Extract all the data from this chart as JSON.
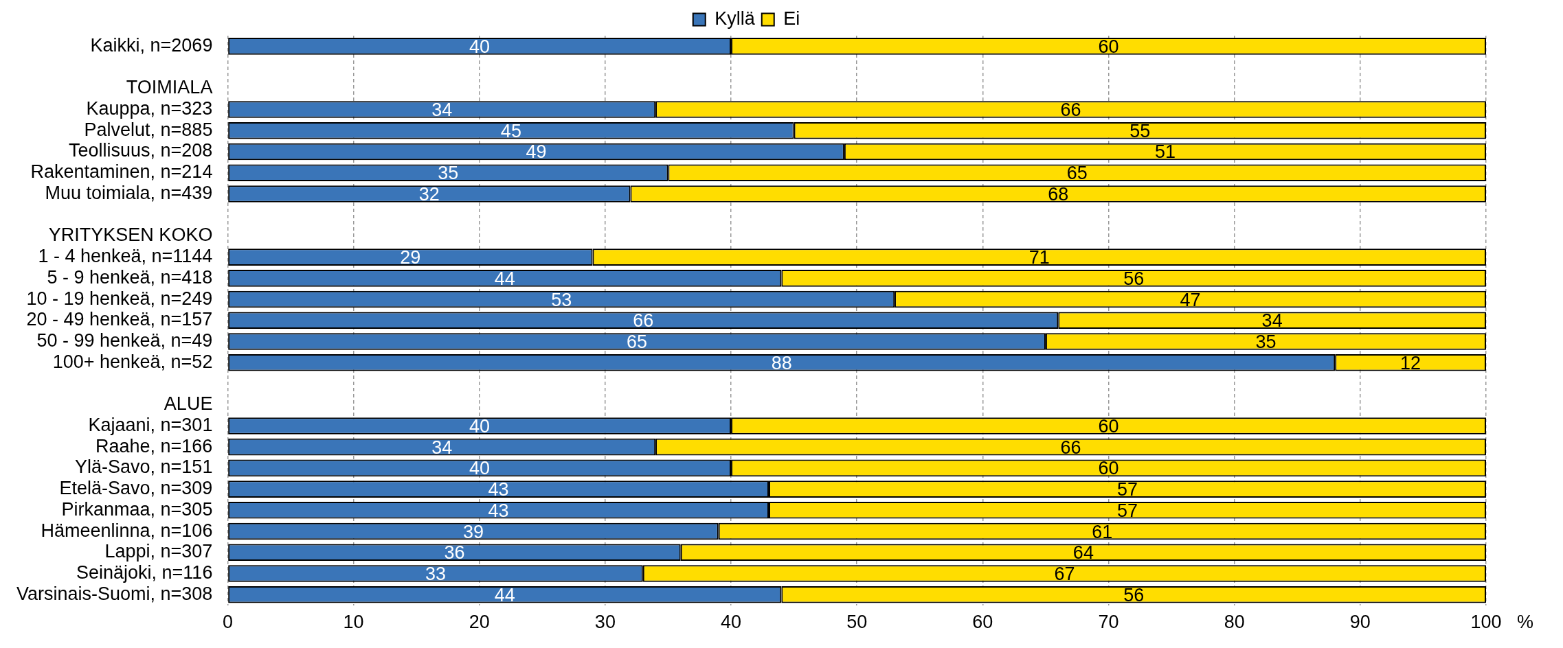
{
  "chart_data": {
    "type": "bar",
    "orientation": "horizontal",
    "stacked": true,
    "categories": [
      "Kaikki, n=2069",
      null,
      "TOIMIALA",
      "Kauppa, n=323",
      "Palvelut, n=885",
      "Teollisuus, n=208",
      "Rakentaminen, n=214",
      "Muu toimiala, n=439",
      null,
      "YRITYKSEN KOKO",
      "1 - 4 henkeä, n=1144",
      "5 - 9 henkeä, n=418",
      "10 - 19 henkeä, n=249",
      "20 - 49 henkeä, n=157",
      "50 - 99 henkeä, n=49",
      "100+ henkeä, n=52",
      null,
      "ALUE",
      "Kajaani, n=301",
      "Raahe, n=166",
      "Ylä-Savo, n=151",
      "Etelä-Savo, n=309",
      "Pirkanmaa, n=305",
      "Hämeenlinna, n=106",
      "Lappi, n=307",
      "Seinäjoki, n=116",
      "Varsinais-Suomi, n=308"
    ],
    "series": [
      {
        "name": "Kyllä",
        "color": "#3a75b8",
        "values": [
          40,
          null,
          null,
          34,
          45,
          49,
          35,
          32,
          null,
          null,
          29,
          44,
          53,
          66,
          65,
          88,
          null,
          null,
          40,
          34,
          40,
          43,
          43,
          39,
          36,
          33,
          44
        ]
      },
      {
        "name": "Ei",
        "color": "#ffdd00",
        "values": [
          60,
          null,
          null,
          66,
          55,
          51,
          65,
          68,
          null,
          null,
          71,
          56,
          47,
          34,
          35,
          12,
          null,
          null,
          60,
          66,
          60,
          57,
          57,
          61,
          64,
          67,
          56
        ]
      }
    ],
    "xlabel": "%",
    "xlim": [
      0,
      100
    ],
    "xticks": [
      0,
      10,
      20,
      30,
      40,
      50,
      60,
      70,
      80,
      90,
      100
    ],
    "grid": "x",
    "legend": "top",
    "data_labels": true
  }
}
